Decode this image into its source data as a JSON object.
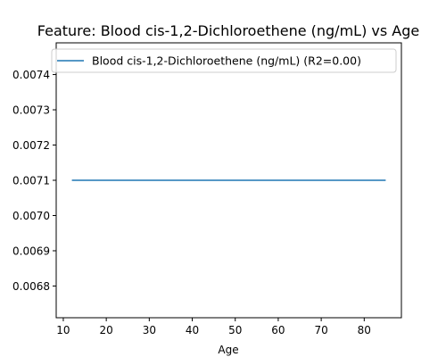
{
  "chart_data": {
    "type": "line",
    "title": "Feature: Blood cis-1,2-Dichloroethene (ng/mL) vs Age",
    "xlabel": "Age",
    "ylabel": "",
    "xlim": [
      8.35,
      88.65
    ],
    "ylim": [
      0.00671,
      0.00749
    ],
    "x_ticks": [
      10,
      20,
      30,
      40,
      50,
      60,
      70,
      80
    ],
    "y_ticks": [
      0.0068,
      0.0069,
      0.007,
      0.0071,
      0.0072,
      0.0073,
      0.0074
    ],
    "x_tick_labels": [
      "10",
      "20",
      "30",
      "40",
      "50",
      "60",
      "70",
      "80"
    ],
    "y_tick_labels": [
      "0.0068",
      "0.0069",
      "0.0070",
      "0.0071",
      "0.0072",
      "0.0073",
      "0.0074"
    ],
    "grid": false,
    "legend_position": "top-right",
    "series": [
      {
        "name": "Blood cis-1,2-Dichloroethene (ng/mL) (R2=0.00)",
        "color": "#1f77b4",
        "x": [
          12,
          85
        ],
        "y": [
          0.0071,
          0.0071
        ]
      }
    ]
  }
}
